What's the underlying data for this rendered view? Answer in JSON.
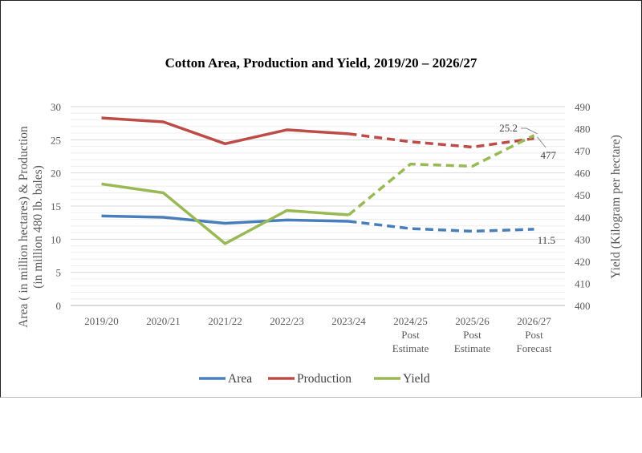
{
  "chart_data": {
    "type": "line",
    "title": "Cotton Area, Production and Yield, 2019/20 – 2026/27",
    "categories": [
      [
        "2019/20"
      ],
      [
        "2020/21"
      ],
      [
        "2021/22"
      ],
      [
        "2022/23"
      ],
      [
        "2023/24"
      ],
      [
        "2024/25",
        "Post",
        "Estimate"
      ],
      [
        "2025/26",
        "Post",
        "Estimate"
      ],
      [
        "2026/27",
        "Post",
        "Forecast"
      ]
    ],
    "ylabel_left": [
      "Area ( in million hectares) & Production",
      "(in million 480 lb. bales)"
    ],
    "ylabel_right": "Yield (Kilogram per hectare)",
    "ylim_left": [
      0,
      30
    ],
    "yticks_left": [
      0,
      5,
      10,
      15,
      20,
      25,
      30
    ],
    "ylim_right": [
      400,
      490
    ],
    "yticks_right": [
      400,
      410,
      420,
      430,
      440,
      450,
      460,
      470,
      480,
      490
    ],
    "grid": true,
    "legend_position": "bottom",
    "dashed_from_index": 5,
    "series": [
      {
        "name": "Area",
        "axis": "left",
        "color": "#4a7ebb",
        "values": [
          13.5,
          13.3,
          12.4,
          12.9,
          12.7,
          11.6,
          11.2,
          11.5
        ]
      },
      {
        "name": "Production",
        "axis": "left",
        "color": "#be4b48",
        "values": [
          28.3,
          27.7,
          24.4,
          26.5,
          25.9,
          24.7,
          23.9,
          25.2
        ]
      },
      {
        "name": "Yield",
        "axis": "right",
        "color": "#98b954",
        "values": [
          455,
          451,
          428,
          443,
          441,
          464,
          463,
          477
        ]
      }
    ],
    "annotations": [
      "25.2",
      "477",
      "11.5"
    ]
  }
}
